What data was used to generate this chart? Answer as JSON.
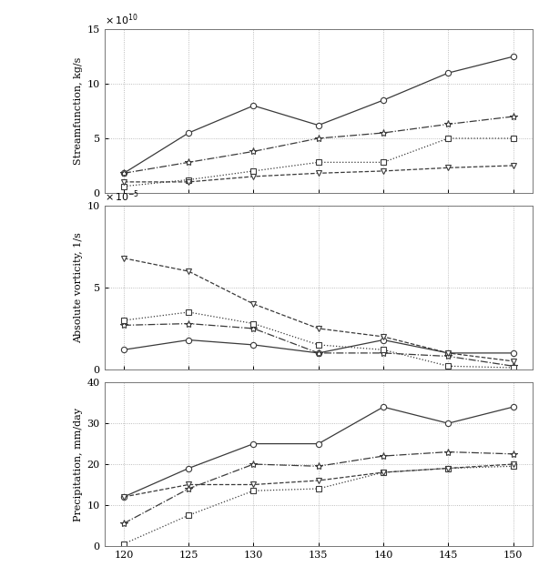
{
  "x": [
    120,
    125,
    130,
    135,
    140,
    145,
    150
  ],
  "panel1": {
    "ylabel": "Streamfunction, kg/s",
    "scale_label": "x 10^{10}",
    "ylim": [
      0,
      15
    ],
    "yticks": [
      0,
      5,
      10,
      15
    ],
    "series": [
      {
        "style": "solid",
        "marker": "o",
        "data": [
          1.8,
          5.5,
          8.0,
          6.2,
          8.5,
          11.0,
          12.5
        ]
      },
      {
        "style": "dashdot",
        "marker": "*",
        "data": [
          1.8,
          2.8,
          3.8,
          5.0,
          5.5,
          6.3,
          7.0
        ]
      },
      {
        "style": "dotted",
        "marker": "s",
        "data": [
          0.6,
          1.2,
          2.0,
          2.8,
          2.8,
          5.0,
          5.0
        ]
      },
      {
        "style": "dashed",
        "marker": "v",
        "data": [
          1.0,
          1.0,
          1.5,
          1.8,
          2.0,
          2.3,
          2.5
        ]
      }
    ]
  },
  "panel2": {
    "ylabel": "Absolute vorticity, 1/s",
    "scale_label": "x 10^{-5}",
    "ylim": [
      0,
      10
    ],
    "yticks": [
      0,
      5,
      10
    ],
    "series": [
      {
        "style": "solid",
        "marker": "o",
        "data": [
          1.2,
          1.8,
          1.5,
          1.0,
          1.8,
          1.0,
          1.0
        ]
      },
      {
        "style": "dashdot",
        "marker": "*",
        "data": [
          2.7,
          2.8,
          2.5,
          1.0,
          1.0,
          0.8,
          0.2
        ]
      },
      {
        "style": "dotted",
        "marker": "s",
        "data": [
          3.0,
          3.5,
          2.8,
          1.5,
          1.2,
          0.2,
          0.1
        ]
      },
      {
        "style": "dashed",
        "marker": "v",
        "data": [
          6.8,
          6.0,
          4.0,
          2.5,
          2.0,
          1.0,
          0.5
        ]
      }
    ]
  },
  "panel3": {
    "ylabel": "Precipitation, mm/day",
    "ylim": [
      0,
      40
    ],
    "yticks": [
      0,
      10,
      20,
      30,
      40
    ],
    "series": [
      {
        "style": "solid",
        "marker": "o",
        "data": [
          12.0,
          19.0,
          25.0,
          25.0,
          34.0,
          30.0,
          34.0
        ]
      },
      {
        "style": "dashdot",
        "marker": "*",
        "data": [
          5.5,
          14.0,
          20.0,
          19.5,
          22.0,
          23.0,
          22.5
        ]
      },
      {
        "style": "dotted",
        "marker": "s",
        "data": [
          0.5,
          7.5,
          13.5,
          14.0,
          18.0,
          19.0,
          19.5
        ]
      },
      {
        "style": "dashed",
        "marker": "v",
        "data": [
          12.0,
          15.0,
          15.0,
          16.0,
          18.0,
          19.0,
          20.0
        ]
      }
    ]
  },
  "line_color": "#3a3a3a",
  "grid_color": "#aaaaaa",
  "bg_color": "#ffffff"
}
